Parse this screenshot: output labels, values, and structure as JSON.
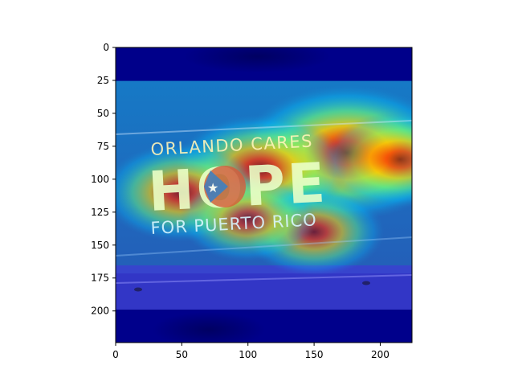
{
  "chart_data": {
    "type": "heatmap",
    "title": "",
    "xlabel": "",
    "ylabel": "",
    "xlim": [
      0,
      224
    ],
    "ylim": [
      224,
      0
    ],
    "x_ticks": [
      0,
      50,
      100,
      150,
      200
    ],
    "y_ticks": [
      0,
      25,
      50,
      75,
      100,
      125,
      150,
      175,
      200
    ],
    "x_tick_labels": [
      "0",
      "50",
      "100",
      "150",
      "200"
    ],
    "y_tick_labels": [
      "0",
      "25",
      "50",
      "75",
      "100",
      "125",
      "150",
      "175",
      "200"
    ],
    "grid": false,
    "colormap": "jet",
    "overlay_image_text": {
      "line1": "ORLANDO CARES",
      "line2": "HOPE",
      "line3": "FOR PUERTO RICO"
    },
    "hotspots": [
      {
        "x": 175,
        "y": 80,
        "intensity": 1.0
      },
      {
        "x": 110,
        "y": 92,
        "intensity": 0.72
      },
      {
        "x": 50,
        "y": 110,
        "intensity": 0.62
      },
      {
        "x": 215,
        "y": 85,
        "intensity": 0.58
      },
      {
        "x": 150,
        "y": 140,
        "intensity": 0.5
      },
      {
        "x": 100,
        "y": 130,
        "intensity": 0.48
      }
    ]
  },
  "colors": {
    "deep_blue": "#00008b",
    "sign_text": "#fff4b8",
    "flag_red": "#d9573a",
    "flag_blue": "#3a78c8"
  }
}
